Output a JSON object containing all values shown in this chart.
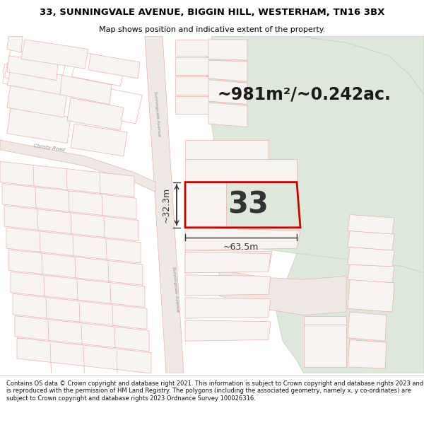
{
  "title_line1": "33, SUNNINGVALE AVENUE, BIGGIN HILL, WESTERHAM, TN16 3BX",
  "title_line2": "Map shows position and indicative extent of the property.",
  "area_text": "~981m²/~0.242ac.",
  "plot_label": "33",
  "dim_width": "~63.5m",
  "dim_height": "~32.3m",
  "footer_text": "Contains OS data © Crown copyright and database right 2021. This information is subject to Crown copyright and database rights 2023 and is reproduced with the permission of HM Land Registry. The polygons (including the associated geometry, namely x, y co-ordinates) are subject to Crown copyright and database rights 2023 Ordnance Survey 100026316.",
  "map_bg": "#f7f4f2",
  "road_color": "#f0e8e4",
  "prop_line": "#e8b0a8",
  "plot_border": "#cc0000",
  "green_area": "#dde8da",
  "green_dark": "#c8d8c4",
  "header_bg": "#ffffff",
  "footer_bg": "#ffffff",
  "ann_color": "#333333",
  "road_label_color": "#888888",
  "fig_width": 6.0,
  "fig_height": 6.25
}
